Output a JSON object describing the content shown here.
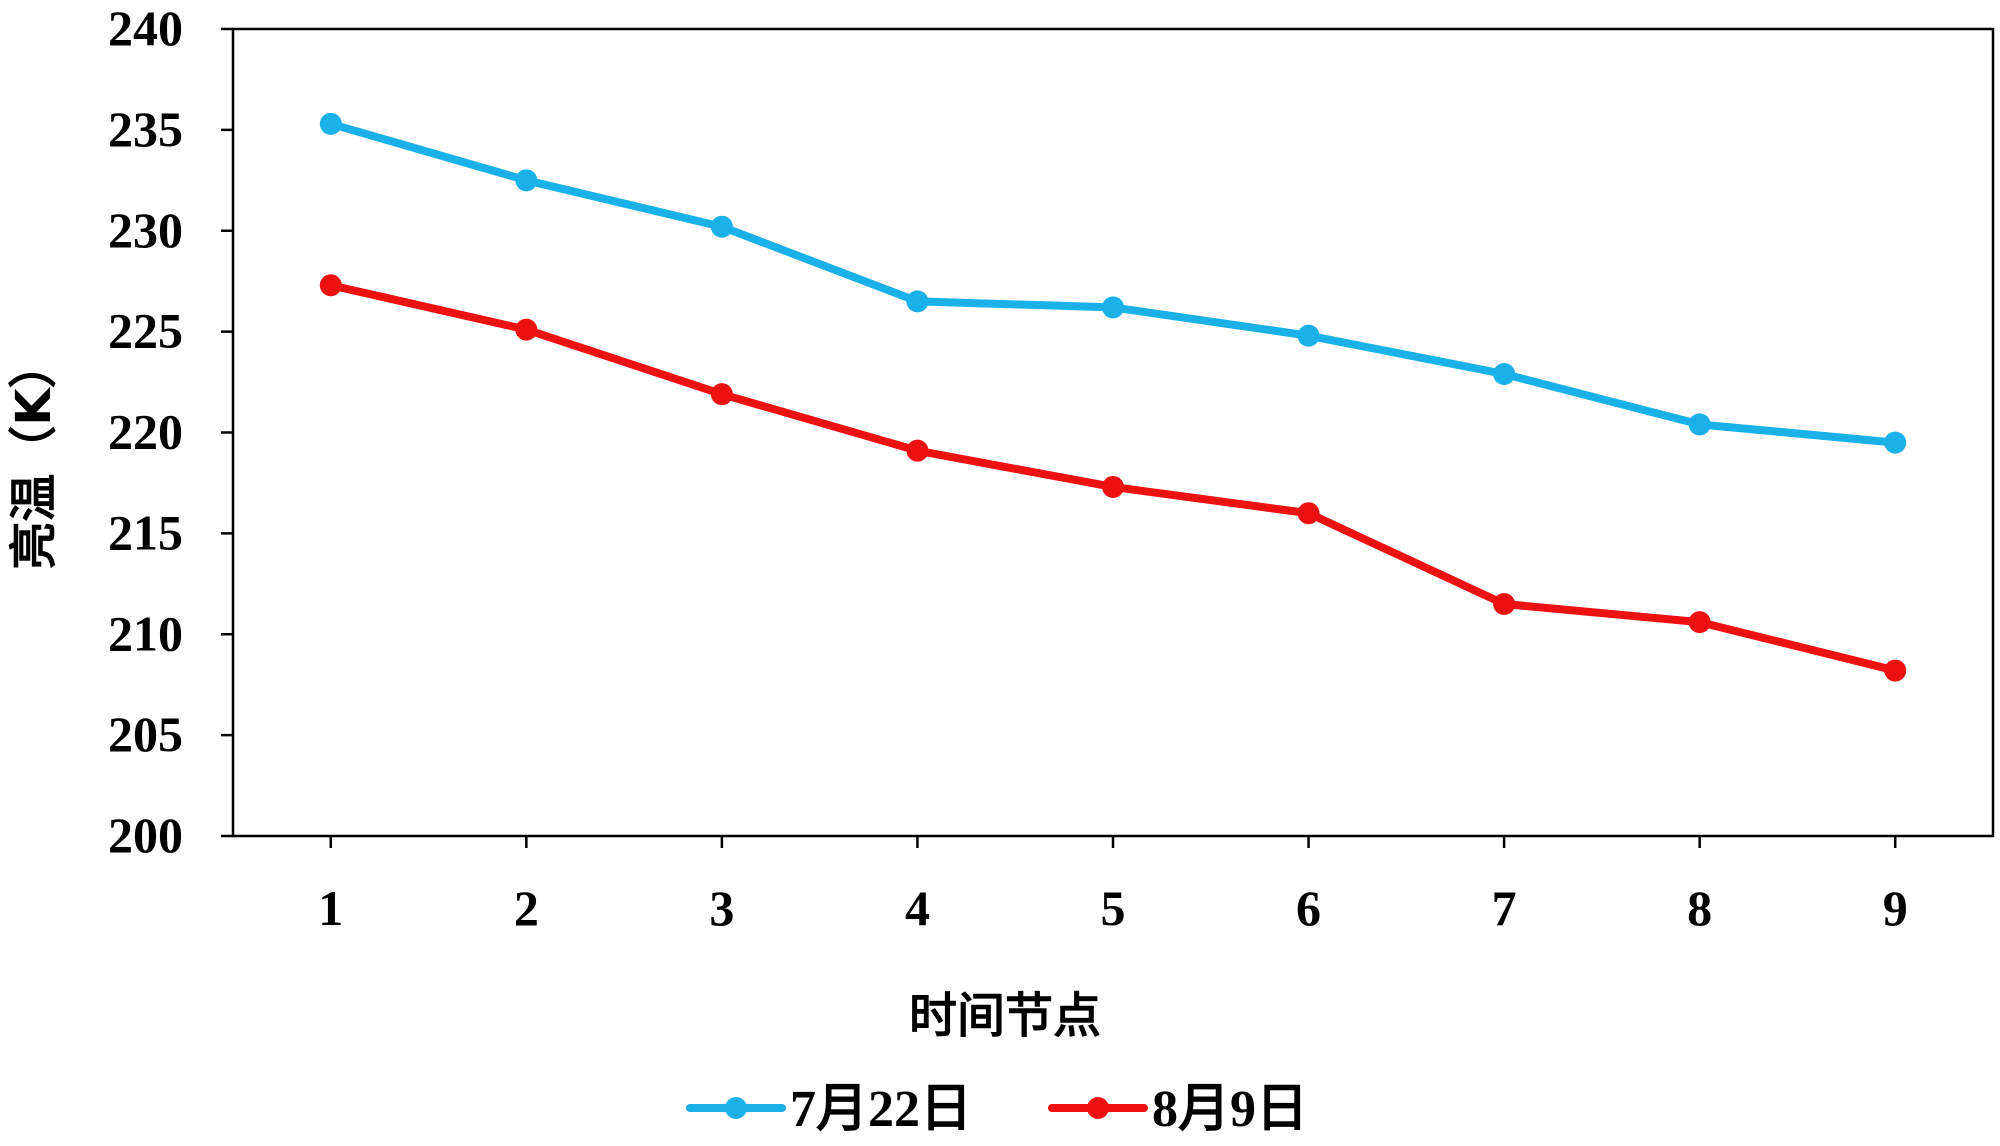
{
  "chart_data": {
    "type": "line",
    "categories": [
      "1",
      "2",
      "3",
      "4",
      "5",
      "6",
      "7",
      "8",
      "9"
    ],
    "xlabel": "时间节点",
    "ylabel": "亮温（K）",
    "ylim": [
      200,
      240
    ],
    "yticks": [
      "200",
      "205",
      "210",
      "215",
      "220",
      "225",
      "230",
      "235",
      "240"
    ],
    "grid": false,
    "legend_position": "bottom",
    "series": [
      {
        "name": "7月22日",
        "color": "#1ab0e8",
        "values": [
          235.3,
          232.5,
          230.2,
          226.5,
          226.2,
          224.8,
          222.9,
          220.4,
          219.5
        ]
      },
      {
        "name": "8月9日",
        "color": "#ee1111",
        "values": [
          227.3,
          225.1,
          221.9,
          219.1,
          217.3,
          216.0,
          211.5,
          210.6,
          208.2
        ]
      }
    ]
  }
}
